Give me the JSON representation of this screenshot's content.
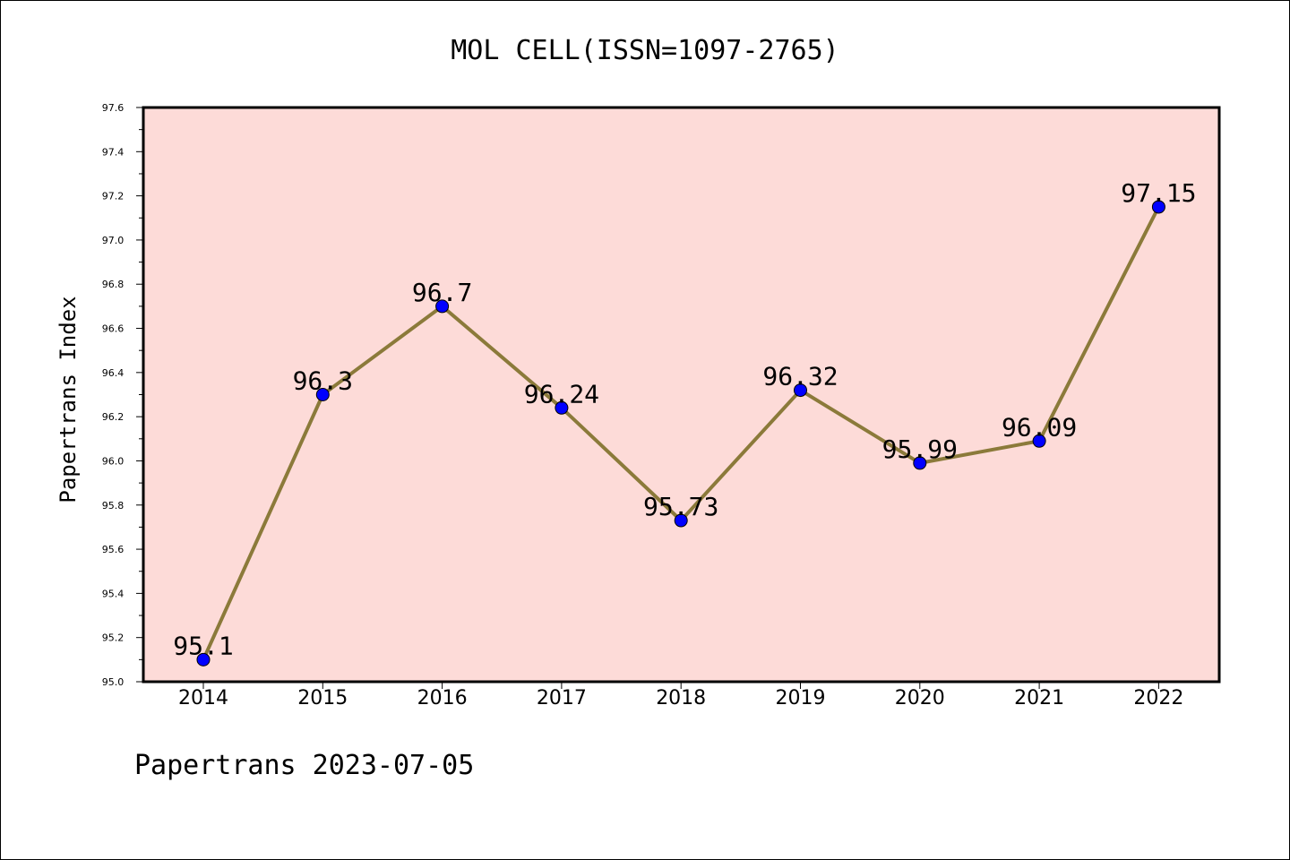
{
  "chart_data": {
    "type": "line",
    "title": "MOL CELL(ISSN=1097-2765)",
    "ylabel": "Papertrans Index",
    "xlabel": "",
    "categories": [
      "2014",
      "2015",
      "2016",
      "2017",
      "2018",
      "2019",
      "2020",
      "2021",
      "2022"
    ],
    "values": [
      95.1,
      96.3,
      96.7,
      96.24,
      95.73,
      96.32,
      95.99,
      96.09,
      97.15
    ],
    "data_labels": [
      "95.1",
      "96.3",
      "96.7",
      "96.24",
      "95.73",
      "96.32",
      "95.99",
      "96.09",
      "97.15"
    ],
    "ylim": [
      95.0,
      97.6
    ],
    "yticks": [
      "95.0",
      "95.2",
      "95.4",
      "95.6",
      "95.8",
      "96.0",
      "96.2",
      "96.4",
      "96.6",
      "96.8",
      "97.0",
      "97.2",
      "97.4",
      "97.6"
    ],
    "grid": false,
    "legend": "none",
    "colors": {
      "plot_background": "#fddbd8",
      "line": "#8b7a3a",
      "marker": "#0000ff"
    }
  },
  "footer": {
    "source_label": "Papertrans 2023-07-05"
  }
}
